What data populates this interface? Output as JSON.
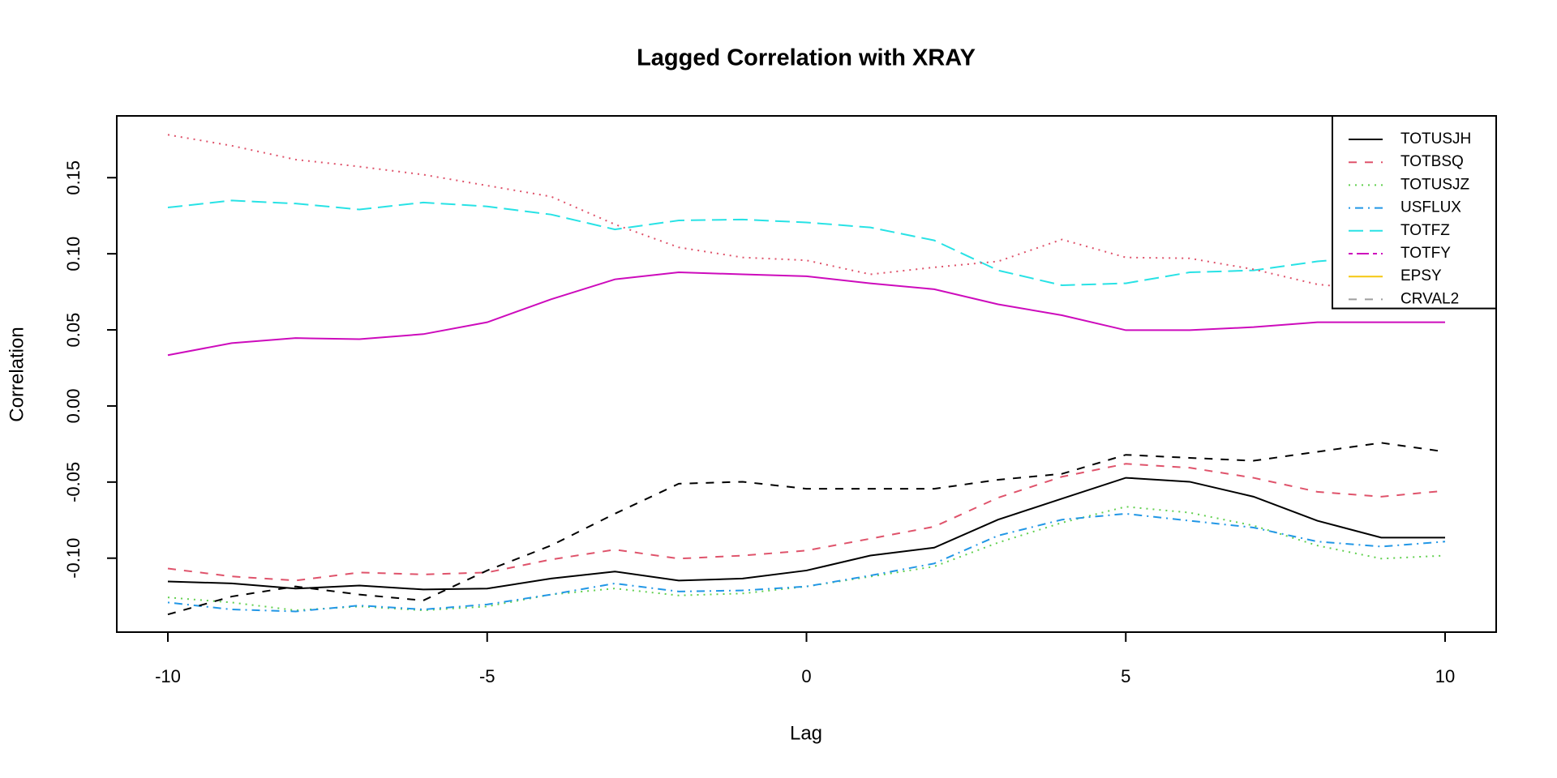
{
  "chart_data": {
    "type": "line",
    "title": "Lagged Correlation with XRAY",
    "xlabel": "Lag",
    "ylabel": "Correlation",
    "x": [
      -10,
      -9,
      -8,
      -7,
      -6,
      -5,
      -4,
      -3,
      -2,
      -1,
      0,
      1,
      2,
      3,
      4,
      5,
      6,
      7,
      8,
      9,
      10
    ],
    "xlim": [
      -10.8,
      10.8
    ],
    "xticks": [
      -10,
      -5,
      0,
      5,
      10
    ],
    "ylim": [
      -0.1486,
      0.1906
    ],
    "yticks": [
      {
        "value": -0.1,
        "label": "-0.10"
      },
      {
        "value": -0.05,
        "label": "-0.05"
      },
      {
        "value": 0,
        "label": "0.00"
      },
      {
        "value": 0.05,
        "label": "0.05"
      },
      {
        "value": 0.1,
        "label": "0.10"
      },
      {
        "value": 0.15,
        "label": "0.15"
      }
    ],
    "legend_position": "topright",
    "series": [
      {
        "name": "TOTUSJH",
        "color": "#000000",
        "dash": "solid",
        "legend_color": "#000000",
        "legend_dash": "solid",
        "values": [
          -0.1153,
          -0.1166,
          -0.12,
          -0.118,
          -0.1206,
          -0.12,
          -0.1134,
          -0.1088,
          -0.1147,
          -0.1134,
          -0.1081,
          -0.0983,
          -0.0931,
          -0.0747,
          -0.0609,
          -0.0472,
          -0.0498,
          -0.0596,
          -0.0754,
          -0.0865,
          -0.0865
        ]
      },
      {
        "name": "TOTBSQ",
        "color": "#DF536B",
        "dash": "dashed",
        "legend_color": "#DF536B",
        "legend_dash": "dashed",
        "values": [
          -0.1068,
          -0.112,
          -0.1147,
          -0.1094,
          -0.1107,
          -0.1094,
          -0.1009,
          -0.0944,
          -0.1003,
          -0.0983,
          -0.095,
          -0.0872,
          -0.0793,
          -0.0603,
          -0.0465,
          -0.038,
          -0.0406,
          -0.0472,
          -0.0564,
          -0.0596,
          -0.0557
        ]
      },
      {
        "name": "TOTUSJZ",
        "color": "#61D04F",
        "dash": "dotted",
        "legend_color": "#61D04F",
        "legend_dash": "dotted",
        "values": [
          -0.1258,
          -0.1291,
          -0.1343,
          -0.1317,
          -0.1343,
          -0.1317,
          -0.1239,
          -0.1199,
          -0.1245,
          -0.1232,
          -0.1186,
          -0.1121,
          -0.1055,
          -0.0898,
          -0.0767,
          -0.0662,
          -0.0701,
          -0.0786,
          -0.0917,
          -0.1003,
          -0.0983
        ]
      },
      {
        "name": "USFLUX",
        "color": "#2297E6",
        "dash": "dotdash",
        "legend_color": "#2297E6",
        "legend_dash": "dotdash",
        "values": [
          -0.1291,
          -0.1337,
          -0.135,
          -0.1311,
          -0.1337,
          -0.1304,
          -0.1239,
          -0.1166,
          -0.1219,
          -0.1212,
          -0.1186,
          -0.1114,
          -0.1035,
          -0.0852,
          -0.0747,
          -0.0708,
          -0.0754,
          -0.0799,
          -0.0891,
          -0.0924,
          -0.0891
        ]
      },
      {
        "name": "TOTFZ",
        "color": "#28E2E5",
        "dash": "longdash",
        "legend_color": "#28E2E5",
        "legend_dash": "longdash",
        "values": [
          0.1304,
          0.135,
          0.133,
          0.1291,
          0.1337,
          0.1311,
          0.1258,
          0.116,
          0.1219,
          0.1225,
          0.1206,
          0.1173,
          0.1088,
          0.0891,
          0.0793,
          0.0806,
          0.0878,
          0.0891,
          0.095,
          0.0983,
          0.1042
        ]
      },
      {
        "name": "TOTFY",
        "color": "#CD0BBC",
        "dash": "solid",
        "legend_color": "#CD0BBC",
        "legend_dash": "twodash",
        "values": [
          0.0334,
          0.0413,
          0.0446,
          0.0439,
          0.0472,
          0.055,
          0.0701,
          0.0832,
          0.0878,
          0.0865,
          0.0852,
          0.0806,
          0.0767,
          0.0668,
          0.0596,
          0.0498,
          0.0498,
          0.0518,
          0.055,
          0.055,
          0.055
        ]
      },
      {
        "name": "EPSY",
        "color": "#000000",
        "dash": "dashed",
        "legend_color": "#F5C710",
        "legend_dash": "solid",
        "values": [
          -0.137,
          -0.1252,
          -0.1186,
          -0.1239,
          -0.1278,
          -0.1081,
          -0.0917,
          -0.0708,
          -0.0511,
          -0.0498,
          -0.0544,
          -0.0544,
          -0.0544,
          -0.0485,
          -0.0446,
          -0.0321,
          -0.0341,
          -0.036,
          -0.0301,
          -0.0242,
          -0.0301
        ]
      },
      {
        "name": "CRVAL2",
        "color": "#DF536B",
        "dash": "dotted",
        "legend_color": "#9E9E9E",
        "legend_dash": "dashed",
        "values": [
          0.1782,
          0.171,
          0.1619,
          0.1573,
          0.152,
          0.1448,
          0.1376,
          0.1193,
          0.1042,
          0.0976,
          0.0957,
          0.0865,
          0.0911,
          0.095,
          0.1094,
          0.0976,
          0.097,
          0.0898,
          0.0799,
          0.076,
          0.0727
        ]
      }
    ]
  }
}
